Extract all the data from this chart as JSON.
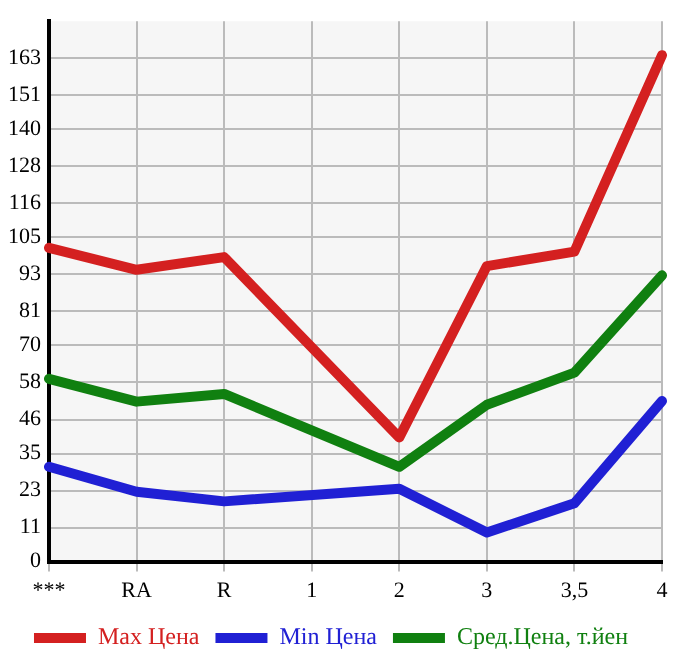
{
  "chart_data": {
    "type": "line",
    "categories": [
      "***",
      "RA",
      "R",
      "1",
      "2",
      "3",
      "3,5",
      "4"
    ],
    "series": [
      {
        "name": "Max Цена",
        "color": "#d42020",
        "values": [
          101.6,
          94.5,
          98.6,
          null,
          40.2,
          95.7,
          100.4,
          164
        ]
      },
      {
        "name": "Min Цена",
        "color": "#2020d4",
        "values": [
          30.7,
          22.6,
          19.5,
          null,
          23.6,
          9.4,
          18.9,
          52
        ]
      },
      {
        "name": "Сред.Цена, т.йен",
        "color": "#108010",
        "values": [
          59.2,
          51.8,
          54.3,
          null,
          30.7,
          50.8,
          61.2,
          92.7
        ]
      }
    ],
    "ylim": [
      0,
      175
    ],
    "yticks": [
      0,
      11,
      23,
      35,
      46,
      58,
      70,
      81,
      93,
      105,
      116,
      128,
      140,
      151,
      163
    ],
    "grid": true,
    "legend": "bottom",
    "marker": "none",
    "line_style": "solid"
  }
}
